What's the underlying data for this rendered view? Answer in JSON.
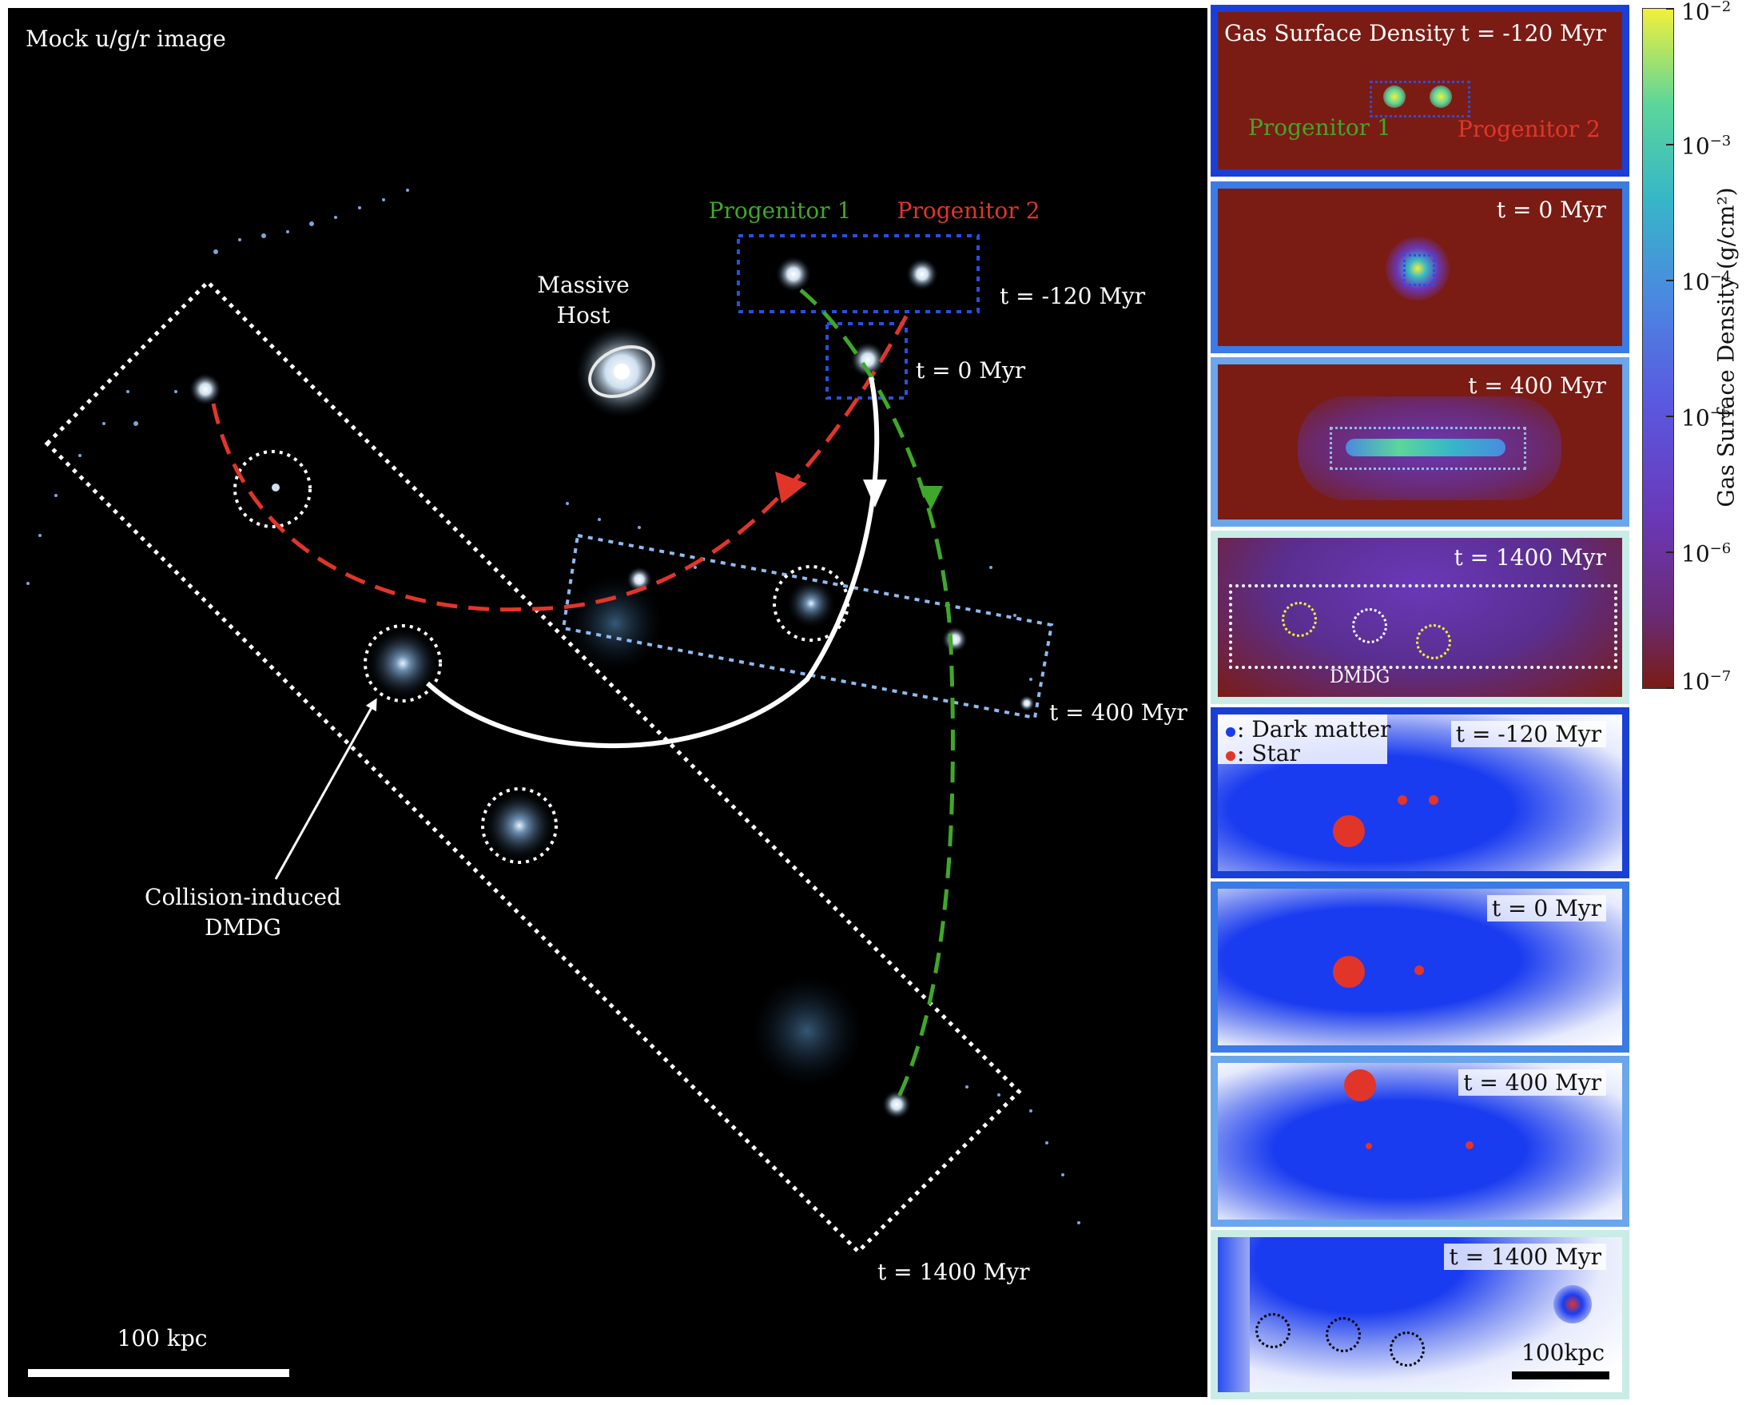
{
  "main": {
    "title": "Mock u/g/r image",
    "labels": {
      "progenitor1": "Progenitor 1",
      "progenitor2": "Progenitor 2",
      "massive_host_line1": "Massive",
      "massive_host_line2": "Host",
      "t_m120": "t = -120 Myr",
      "t_0": "t = 0 Myr",
      "t_400": "t = 400 Myr",
      "t_1400": "t = 1400 Myr",
      "collision_line1": "Collision-induced",
      "collision_line2": "DMDG",
      "scale": "100 kpc"
    },
    "colors": {
      "progenitor1": "#3fa82a",
      "progenitor2": "#e2352a",
      "blue_box": "#2a4fe0",
      "light_blue_box": "#8fbaf0"
    }
  },
  "gas_panels": {
    "title": "Gas Surface Density",
    "items": [
      {
        "time": "t = -120 Myr",
        "border": "#1a3fd6",
        "prog1": "Progenitor 1",
        "prog2": "Progenitor 2"
      },
      {
        "time": "t = 0 Myr",
        "border": "#3a7be6"
      },
      {
        "time": "t = 400 Myr",
        "border": "#6aa6ec"
      },
      {
        "time": "t = 1400 Myr",
        "border": "#c9ece6",
        "dmdg": "DMDG"
      }
    ]
  },
  "colorbar": {
    "label": "Gas Surface Density (g/cm²)",
    "ticks": [
      {
        "base": "10",
        "exp": "−2"
      },
      {
        "base": "10",
        "exp": "−3"
      },
      {
        "base": "10",
        "exp": "−4"
      },
      {
        "base": "10",
        "exp": "−5"
      },
      {
        "base": "10",
        "exp": "−6"
      },
      {
        "base": "10",
        "exp": "−7"
      }
    ]
  },
  "particle_panels": {
    "legend_dm": ": Dark matter",
    "legend_star": ": Star",
    "scale": "100kpc",
    "items": [
      {
        "time": "t = -120 Myr",
        "border": "#1a3fd6"
      },
      {
        "time": "t = 0 Myr",
        "border": "#3a7be6"
      },
      {
        "time": "t = 400 Myr",
        "border": "#6aa6ec"
      },
      {
        "time": "t = 1400 Myr",
        "border": "#c9ece6"
      }
    ]
  }
}
